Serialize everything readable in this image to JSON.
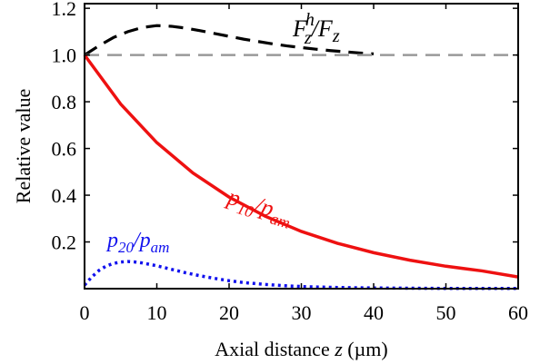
{
  "chart_data": {
    "type": "line",
    "xlabel": "Axial distance z (µm)",
    "xlabel_prefix": "Axial distance ",
    "xlabel_var": "z",
    "xlabel_unit": " (µm)",
    "ylabel": "Relative value",
    "xlim": [
      0,
      60
    ],
    "ylim": [
      0,
      1.22
    ],
    "xticks": [
      0,
      10,
      20,
      30,
      40,
      50,
      60
    ],
    "xtick_labels": [
      "0",
      "10",
      "20",
      "30",
      "40",
      "50",
      "60"
    ],
    "yticks": [
      0.2,
      0.4,
      0.6,
      0.8,
      1.0,
      1.2
    ],
    "ytick_labels": [
      "0.2",
      "0.4",
      "0.6",
      "0.8",
      "1.0",
      "1.2"
    ],
    "grid": false,
    "series": [
      {
        "name": "F_z^h/F_z",
        "color": "#000000",
        "style": "dashed",
        "x": [
          0,
          2,
          4,
          6,
          8,
          10,
          12,
          14,
          16,
          18,
          20,
          22,
          24,
          26,
          28,
          30,
          32,
          34,
          36,
          38,
          40
        ],
        "y": [
          1.0,
          1.04,
          1.075,
          1.1,
          1.118,
          1.126,
          1.123,
          1.115,
          1.104,
          1.092,
          1.08,
          1.068,
          1.058,
          1.048,
          1.039,
          1.032,
          1.025,
          1.019,
          1.014,
          1.009,
          1.005
        ]
      },
      {
        "name": "",
        "color": "#999999",
        "style": "dashed",
        "x": [
          0,
          60
        ],
        "y": [
          1.0,
          1.0
        ]
      },
      {
        "name": "p_10/p_am",
        "color": "#ee1111",
        "style": "solid",
        "x": [
          0,
          5,
          10,
          15,
          20,
          25,
          30,
          35,
          40,
          45,
          50,
          55,
          60
        ],
        "y": [
          1.0,
          0.79,
          0.625,
          0.495,
          0.392,
          0.31,
          0.245,
          0.194,
          0.154,
          0.122,
          0.096,
          0.076,
          0.05
        ]
      },
      {
        "name": "p_20/p_am",
        "color": "#1111ee",
        "style": "dotted",
        "x": [
          0,
          1,
          2,
          3,
          4,
          5,
          6,
          7,
          8,
          10,
          12,
          14,
          16,
          18,
          20,
          22,
          25,
          28,
          31,
          35,
          40,
          45,
          50,
          55,
          60
        ],
        "y": [
          0.015,
          0.05,
          0.078,
          0.097,
          0.108,
          0.114,
          0.116,
          0.114,
          0.11,
          0.098,
          0.083,
          0.068,
          0.055,
          0.044,
          0.034,
          0.026,
          0.018,
          0.012,
          0.008,
          0.005,
          0.003,
          0.002,
          0.001,
          0.001,
          0.001
        ]
      }
    ],
    "annotations": [
      {
        "id": "fz",
        "base": "F",
        "sub": "z",
        "sup": "h",
        "slash": "/",
        "base2": "F",
        "sub2": "z",
        "color": "#000000"
      },
      {
        "id": "p10",
        "base": "p",
        "sub": "10",
        "slash": "/",
        "base2": "p",
        "sub2": "am",
        "color": "#ee1111"
      },
      {
        "id": "p20",
        "base": "p",
        "sub": "20",
        "slash": "/",
        "base2": "p",
        "sub2": "am",
        "color": "#1111ee"
      }
    ]
  }
}
